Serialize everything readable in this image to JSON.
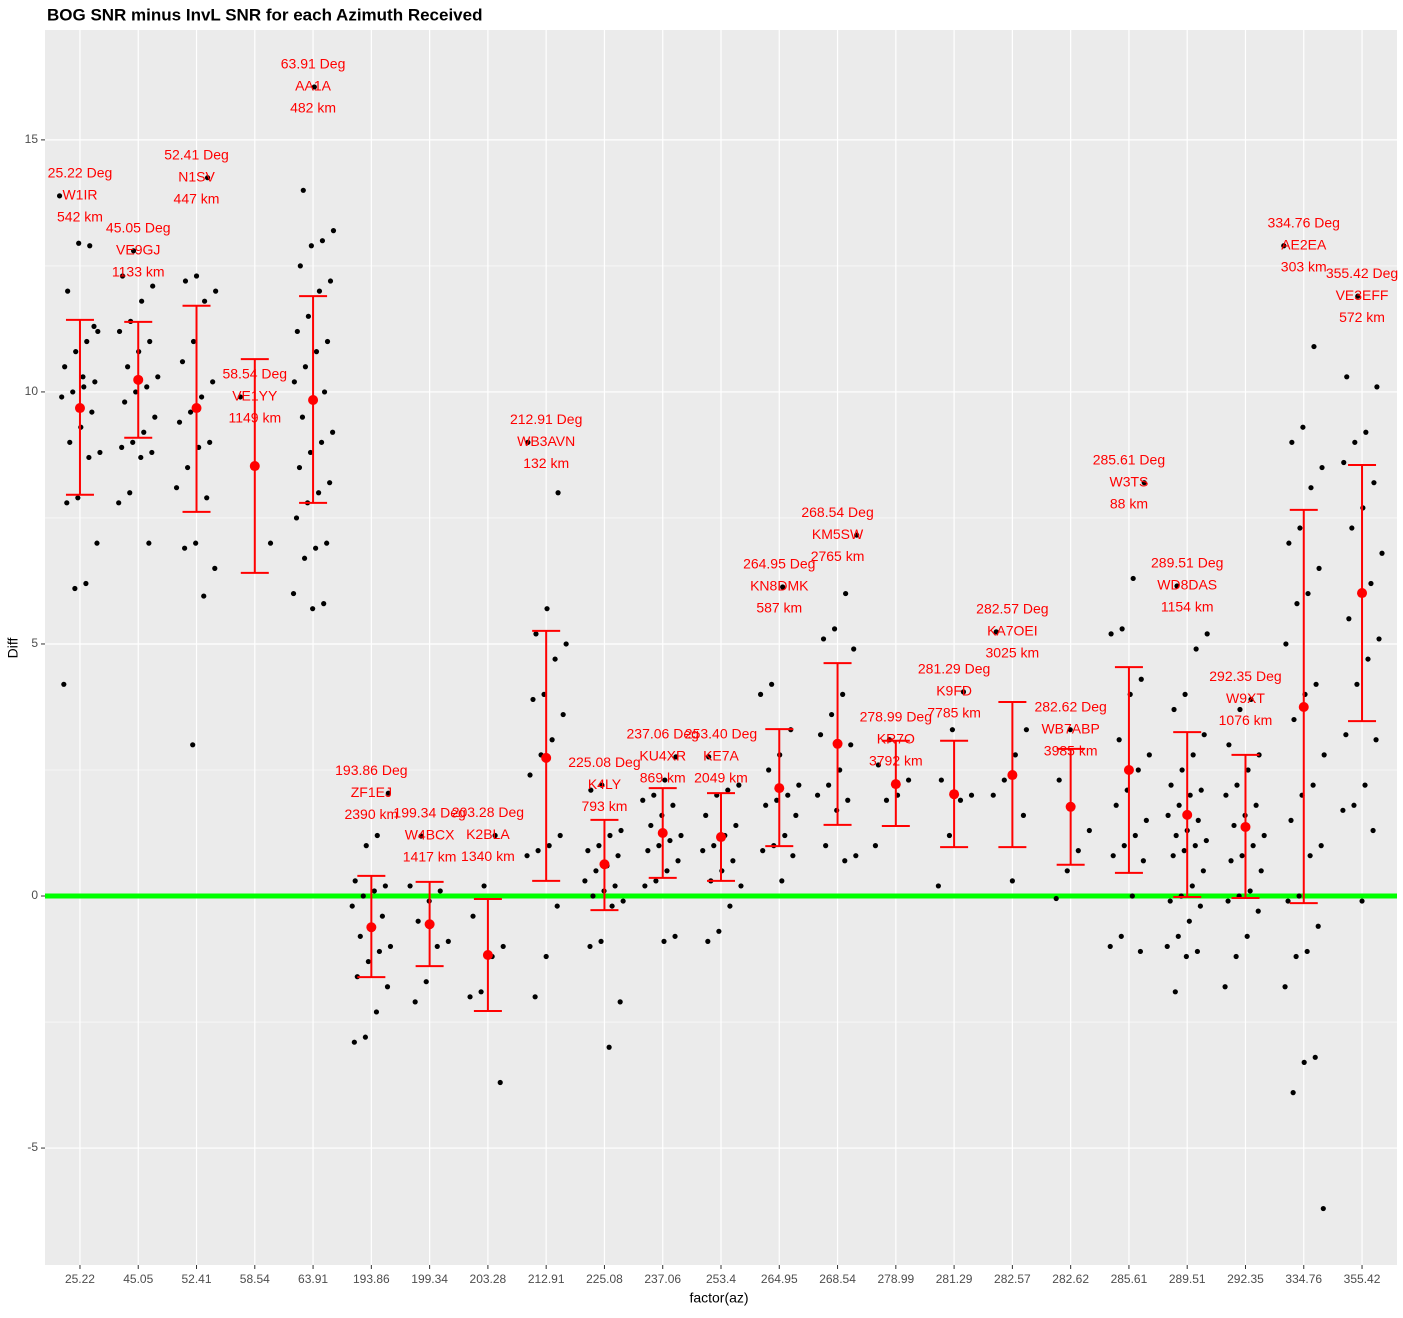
{
  "chart_data": {
    "type": "errorbar",
    "title": "BOG SNR minus InvL SNR for each Azimuth Received",
    "x_label": "factor(az)",
    "y_label": "Diff",
    "categories": [
      "25.22",
      "45.05",
      "52.41",
      "58.54",
      "63.91",
      "193.86",
      "199.34",
      "203.28",
      "212.91",
      "225.08",
      "237.06",
      "253.4",
      "264.95",
      "268.54",
      "278.99",
      "281.29",
      "282.57",
      "282.62",
      "285.61",
      "289.51",
      "292.35",
      "334.76",
      "355.42"
    ],
    "means": [
      9.68,
      10.24,
      9.68,
      8.53,
      9.84,
      -0.62,
      -0.56,
      -1.17,
      2.74,
      0.63,
      1.25,
      1.17,
      2.14,
      3.02,
      2.22,
      2.02,
      2.4,
      1.77,
      2.5,
      1.61,
      1.37,
      3.75,
      6.01
    ],
    "lower": [
      7.96,
      9.09,
      7.62,
      6.41,
      7.8,
      -1.61,
      -1.39,
      -2.28,
      0.3,
      -0.28,
      0.36,
      0.3,
      0.99,
      1.41,
      1.39,
      0.97,
      0.97,
      0.62,
      0.46,
      -0.02,
      -0.04,
      -0.14,
      3.47
    ],
    "upper": [
      11.43,
      11.39,
      11.71,
      10.65,
      11.9,
      0.4,
      0.28,
      -0.06,
      5.26,
      1.51,
      2.14,
      2.04,
      3.31,
      4.62,
      3.08,
      3.08,
      3.85,
      2.92,
      4.54,
      3.25,
      2.8,
      7.66,
      8.55
    ],
    "points": [
      [
        13.89,
        12.9,
        12.95,
        12.0,
        11.2,
        11.0,
        10.8,
        10.5,
        10.2,
        10.1,
        10.0,
        9.9,
        9.6,
        9.3,
        9.0,
        8.8,
        8.7,
        7.9,
        7.8,
        7.0,
        6.2,
        6.1,
        4.2,
        11.3,
        10.3
      ],
      [
        12.8,
        12.3,
        12.1,
        11.8,
        11.4,
        11.2,
        11.0,
        10.8,
        10.5,
        10.3,
        10.1,
        10.0,
        9.8,
        9.5,
        9.2,
        9.0,
        8.9,
        8.8,
        8.7,
        8.0,
        7.8,
        7.0
      ],
      [
        14.25,
        12.3,
        12.2,
        12.0,
        11.8,
        11.0,
        10.6,
        10.2,
        9.9,
        9.6,
        9.4,
        9.0,
        8.9,
        8.5,
        8.1,
        7.9,
        7.0,
        6.9,
        6.5,
        5.95,
        3.0
      ],
      [
        9.9,
        7.0
      ],
      [
        16.05,
        14.0,
        13.2,
        13.0,
        12.9,
        12.5,
        12.2,
        12.0,
        11.5,
        11.2,
        11.0,
        10.8,
        10.5,
        10.2,
        10.0,
        9.8,
        9.5,
        9.2,
        9.0,
        8.8,
        8.5,
        8.2,
        8.0,
        7.8,
        7.5,
        7.0,
        6.9,
        6.7,
        6.0,
        5.8,
        5.7
      ],
      [
        2.04,
        1.2,
        1.0,
        0.3,
        0.2,
        0.1,
        0.0,
        -0.2,
        -0.4,
        -0.6,
        -0.8,
        -1.0,
        -1.1,
        -1.3,
        -1.6,
        -1.8,
        -2.3,
        -2.8,
        -2.9
      ],
      [
        1.19,
        0.2,
        0.1,
        -0.1,
        -0.5,
        -0.9,
        -1.0,
        -1.7,
        -2.1
      ],
      [
        1.2,
        0.2,
        -0.4,
        -1.0,
        -1.2,
        -1.9,
        -2.0,
        -3.7
      ],
      [
        9.0,
        8.0,
        5.7,
        5.2,
        5.0,
        4.7,
        4.0,
        3.9,
        3.6,
        3.1,
        2.8,
        2.4,
        1.2,
        1.0,
        0.9,
        0.8,
        -0.2,
        -1.2,
        -2.0
      ],
      [
        2.2,
        2.1,
        1.3,
        1.2,
        1.0,
        0.9,
        0.8,
        0.6,
        0.5,
        0.3,
        0.2,
        0.1,
        0.0,
        -0.1,
        -0.2,
        -0.9,
        -1.0,
        -2.1,
        -3.0
      ],
      [
        2.76,
        2.3,
        2.0,
        1.9,
        1.8,
        1.6,
        1.4,
        1.2,
        1.1,
        1.0,
        0.9,
        0.7,
        0.5,
        0.3,
        0.2,
        -0.8,
        -0.9
      ],
      [
        2.76,
        2.2,
        2.1,
        2.0,
        1.6,
        1.4,
        1.2,
        1.0,
        0.9,
        0.7,
        0.5,
        0.3,
        0.2,
        -0.2,
        -0.7,
        -0.9
      ],
      [
        6.13,
        4.2,
        4.0,
        3.3,
        2.8,
        2.5,
        2.2,
        2.0,
        1.9,
        1.8,
        1.6,
        1.2,
        1.0,
        0.9,
        0.8,
        0.3
      ],
      [
        7.16,
        6.0,
        5.3,
        5.1,
        4.9,
        4.0,
        3.6,
        3.2,
        3.0,
        2.5,
        2.2,
        2.0,
        1.9,
        1.7,
        1.0,
        0.8,
        0.7
      ],
      [
        3.1,
        2.6,
        2.3,
        2.0,
        1.9,
        1.0
      ],
      [
        4.05,
        3.3,
        2.3,
        2.0,
        1.9,
        1.2,
        0.2
      ],
      [
        5.24,
        3.3,
        2.8,
        2.3,
        2.0,
        1.6,
        0.3
      ],
      [
        3.3,
        2.3,
        1.3,
        0.9,
        0.5,
        -0.05
      ],
      [
        8.2,
        6.3,
        5.3,
        5.2,
        4.3,
        4.0,
        3.1,
        2.8,
        2.5,
        2.1,
        1.8,
        1.5,
        1.2,
        1.0,
        0.8,
        0.7,
        0.0,
        -0.8,
        -1.0,
        -1.1
      ],
      [
        6.15,
        5.2,
        4.9,
        4.0,
        3.7,
        3.2,
        2.8,
        2.5,
        2.2,
        2.1,
        2.0,
        1.8,
        1.6,
        1.5,
        1.3,
        1.2,
        1.1,
        1.0,
        0.9,
        0.8,
        0.5,
        0.2,
        0.0,
        -0.1,
        -0.2,
        -0.5,
        -0.8,
        -1.0,
        -1.1,
        -1.2,
        -1.9
      ],
      [
        3.9,
        3.7,
        3.0,
        2.8,
        2.5,
        2.2,
        2.0,
        1.8,
        1.6,
        1.4,
        1.2,
        1.0,
        0.8,
        0.7,
        0.5,
        0.1,
        0.0,
        -0.1,
        -0.3,
        -0.8,
        -1.2,
        -1.8
      ],
      [
        12.9,
        10.9,
        9.3,
        9.0,
        8.5,
        8.1,
        7.3,
        7.0,
        6.5,
        6.0,
        5.8,
        5.0,
        4.2,
        4.0,
        3.5,
        2.8,
        2.2,
        2.0,
        1.5,
        1.0,
        0.8,
        0.0,
        -0.1,
        -0.6,
        -1.1,
        -1.2,
        -1.8,
        -3.2,
        -3.3,
        -3.9,
        -6.2
      ],
      [
        11.9,
        10.3,
        10.1,
        9.2,
        9.0,
        8.6,
        8.2,
        7.7,
        7.3,
        6.8,
        6.2,
        6.0,
        5.5,
        5.1,
        4.7,
        4.2,
        3.2,
        3.1,
        2.2,
        1.8,
        1.7,
        1.3,
        -0.1
      ]
    ],
    "annotations": [
      [
        "25.22 Deg",
        "W1IR",
        "542 km"
      ],
      [
        "45.05 Deg",
        "VE9GJ",
        "1133 km"
      ],
      [
        "52.41 Deg",
        "N1SV",
        "447 km"
      ],
      [
        "58.54 Deg",
        "VE1YY",
        "1149 km"
      ],
      [
        "63.91 Deg",
        "AA1A",
        "482 km"
      ],
      [
        "193.86 Deg",
        "ZF1EJ",
        "2390 km"
      ],
      [
        "199.34 Deg",
        "W4BCX",
        "1417 km"
      ],
      [
        "203.28 Deg",
        "K2BLA",
        "1340 km"
      ],
      [
        "212.91 Deg",
        "WB3AVN",
        "132 km"
      ],
      [
        "225.08 Deg",
        "K4LY",
        "793 km"
      ],
      [
        "237.06 Deg",
        "KU4XR",
        "869 km"
      ],
      [
        "253.40 Deg",
        "KE7A",
        "2049 km"
      ],
      [
        "264.95 Deg",
        "KN8DMK",
        "587 km"
      ],
      [
        "268.54 Deg",
        "KM5SW",
        "2765 km"
      ],
      [
        "278.99 Deg",
        "KR7O",
        "3792 km"
      ],
      [
        "281.29 Deg",
        "K9FD",
        "7785 km"
      ],
      [
        "282.57 Deg",
        "KA7OEI",
        "3025 km"
      ],
      [
        "282.62 Deg",
        "WB7ABP",
        "3985 km"
      ],
      [
        "285.61 Deg",
        "W3TS",
        "88 km"
      ],
      [
        "289.51 Deg",
        "WD8DAS",
        "1154 km"
      ],
      [
        "292.35 Deg",
        "W9XT",
        "1076 km"
      ],
      [
        "334.76 Deg",
        "AE2EA",
        "303 km"
      ],
      [
        "355.42 Deg",
        "VE3EFF",
        "572 km"
      ]
    ],
    "point_color": "#000000",
    "error_color": "#ff0000",
    "annotation_color": "#ff0000",
    "hline": {
      "value": 0,
      "color": "#00ff00"
    },
    "ylim": [
      -7.32,
      17.18
    ],
    "yticks": [
      -5,
      0,
      5,
      10,
      15
    ],
    "grid": true
  }
}
